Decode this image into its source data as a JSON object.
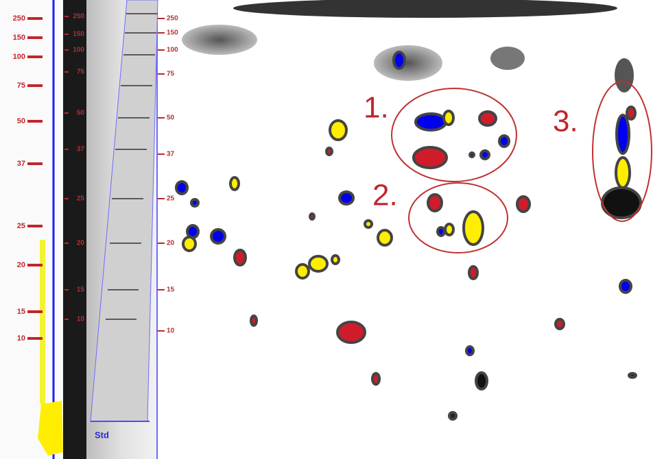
{
  "ladders": [
    {
      "labels": [
        "250",
        "150",
        "100",
        "75",
        "50",
        "37",
        "25",
        "20",
        "15",
        "10"
      ]
    },
    {
      "labels": [
        "250",
        "150",
        "100",
        "75",
        "50",
        "37",
        "25",
        "20",
        "15",
        "10"
      ]
    },
    {
      "labels": [
        "250",
        "150",
        "100",
        "75",
        "50",
        "37",
        "25",
        "20",
        "15",
        "10"
      ]
    }
  ],
  "annotations": [
    "1.",
    "2.",
    "3."
  ],
  "std_label": "Std"
}
